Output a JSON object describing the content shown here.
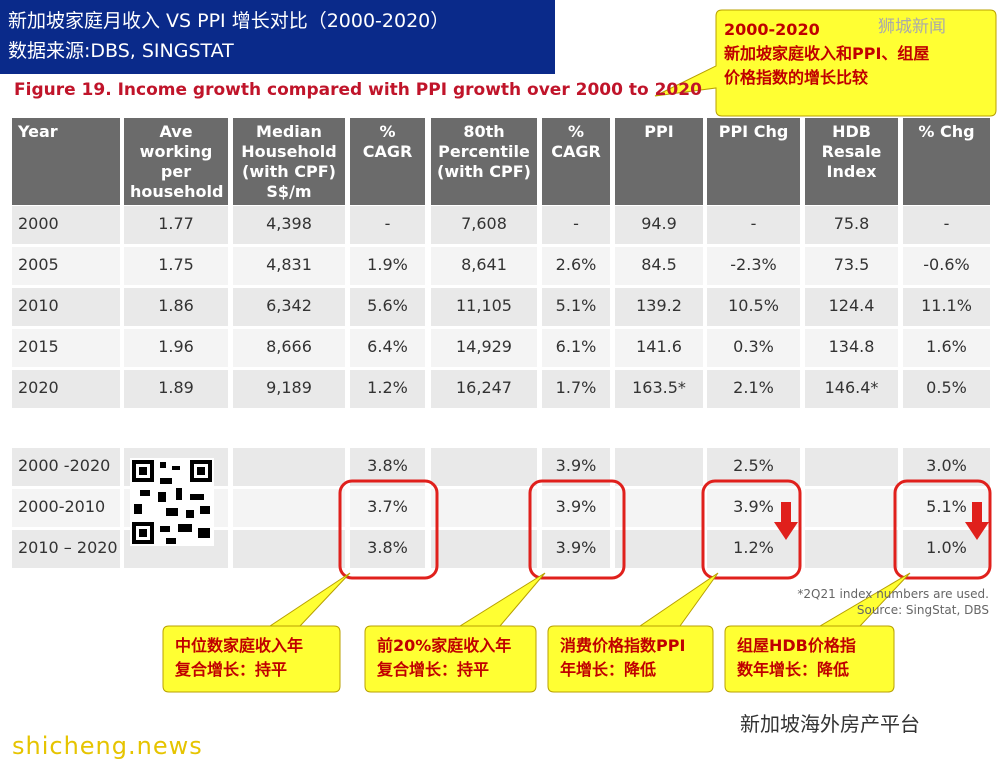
{
  "header": {
    "title": "新加坡家庭月收入 VS PPI 增长对比（2000-2020）",
    "source": "数据来源:DBS, SINGSTAT"
  },
  "figure_title": "Figure 19. Income growth compared with PPI growth over 2000 to 2020",
  "callout_top": [
    "2000-2020",
    "新加坡家庭收入和PPI、组屋",
    "价格指数的增长比较"
  ],
  "watermark_top": "狮城新闻",
  "table": {
    "columns": [
      "Year",
      "Ave working per household",
      "Median Household (with CPF) S$/m",
      "% CAGR",
      "80th Percentile (with CPF)",
      "% CAGR",
      "PPI",
      "PPI Chg",
      "HDB Resale Index",
      "% Chg"
    ],
    "rows": [
      [
        "2000",
        "1.77",
        "4,398",
        "-",
        "7,608",
        "-",
        "94.9",
        "-",
        "75.8",
        "-"
      ],
      [
        "2005",
        "1.75",
        "4,831",
        "1.9%",
        "8,641",
        "2.6%",
        "84.5",
        "-2.3%",
        "73.5",
        "-0.6%"
      ],
      [
        "2010",
        "1.86",
        "6,342",
        "5.6%",
        "11,105",
        "5.1%",
        "139.2",
        "10.5%",
        "124.4",
        "11.1%"
      ],
      [
        "2015",
        "1.96",
        "8,666",
        "6.4%",
        "14,929",
        "6.1%",
        "141.6",
        "0.3%",
        "134.8",
        "1.6%"
      ],
      [
        "2020",
        "1.89",
        "9,189",
        "1.2%",
        "16,247",
        "1.7%",
        "163.5*",
        "2.1%",
        "146.4*",
        "0.5%"
      ]
    ],
    "summary_rows": [
      [
        "2000 -2020",
        null,
        null,
        "3.8%",
        null,
        "3.9%",
        null,
        "2.5%",
        null,
        "3.0%"
      ],
      [
        "2000-2010",
        null,
        null,
        "3.7%",
        null,
        "3.9%",
        null,
        "3.9%",
        null,
        "5.1%"
      ],
      [
        "2010 – 2020",
        null,
        null,
        "3.8%",
        null,
        "3.9%",
        null,
        "1.2%",
        null,
        "1.0%"
      ]
    ]
  },
  "footnotes": [
    "*2Q21 index numbers are used.",
    "Source: SingStat, DBS"
  ],
  "callouts": [
    [
      "中位数家庭收入年",
      "复合增长：持平"
    ],
    [
      "前20%家庭收入年",
      "复合增长：持平"
    ],
    [
      "消费价格指数PPI",
      "年增长：降低"
    ],
    [
      "组屋HDB价格指",
      "数年增长：降低"
    ]
  ],
  "watermark_bottom_left": "shicheng.news",
  "watermark_bottom_right": "新加坡海外房产平台"
}
